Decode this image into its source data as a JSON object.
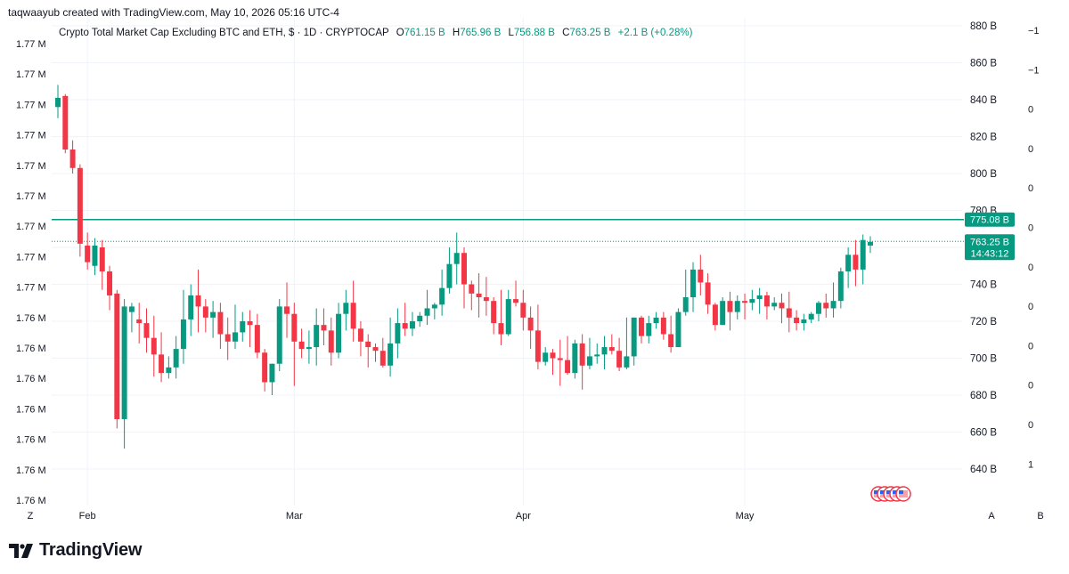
{
  "header": {
    "attribution": "taqwaayub created with TradingView.com, May 10, 2026 05:16 UTC-4"
  },
  "legend": {
    "title": "Crypto Total Market Cap Excluding BTC and ETH, $ · 1D · CRYPTOCAP",
    "o_label": "O",
    "o_value": "761.15 B",
    "h_label": "H",
    "h_value": "765.96 B",
    "l_label": "L",
    "l_value": "756.88 B",
    "c_label": "C",
    "c_value": "763.25 B",
    "change": "+2.1 B (+0.28%)"
  },
  "colors": {
    "up": "#089981",
    "down": "#f23645",
    "grid": "#f0f3fa",
    "hline": "#089981",
    "text": "#131722"
  },
  "axis_buttons": {
    "left": "Z",
    "right_a": "A",
    "right_b": "B"
  },
  "footer": {
    "brand": "TradingView"
  },
  "price_labels": {
    "resistance": "775.08 B",
    "last_price": "763.25 B",
    "countdown": "14:43:12"
  },
  "chart_data": {
    "type": "candlestick",
    "title": "Crypto Total Market Cap Excluding BTC and ETH, $ · 1D · CRYPTOCAP",
    "x_ticks": [
      "Feb",
      "Mar",
      "Apr",
      "May"
    ],
    "y_right_ticks": [
      "880 B",
      "860 B",
      "840 B",
      "820 B",
      "800 B",
      "780 B",
      "740 B",
      "720 B",
      "700 B",
      "680 B",
      "660 B",
      "640 B"
    ],
    "y_right_tick_values": [
      880,
      860,
      840,
      820,
      800,
      780,
      740,
      720,
      700,
      680,
      660,
      640
    ],
    "y_left_ticks": [
      "1.77 M",
      "1.77 M",
      "1.77 M",
      "1.77 M",
      "1.77 M",
      "1.77 M",
      "1.77 M",
      "1.77 M",
      "1.77 M",
      "1.76 M",
      "1.76 M",
      "1.76 M",
      "1.76 M",
      "1.76 M",
      "1.76 M",
      "1.76 M"
    ],
    "y_far_right_ticks": [
      "−1",
      "−1",
      "0",
      "0",
      "0",
      "0",
      "0",
      "0",
      "0",
      "0",
      "0",
      "1"
    ],
    "ylim": [
      630,
      885
    ],
    "horizontal_line": 775.08,
    "last_close": 763.25,
    "candles": [
      [
        836,
        841,
        830,
        848
      ],
      [
        842,
        813,
        811,
        843
      ],
      [
        813,
        803,
        800,
        818
      ],
      [
        803,
        762,
        755,
        805
      ],
      [
        761,
        752,
        748,
        768
      ],
      [
        750,
        761,
        745,
        765
      ],
      [
        760,
        747,
        737,
        764
      ],
      [
        747,
        734,
        726,
        750
      ],
      [
        735,
        667,
        662,
        737
      ],
      [
        667,
        728,
        651,
        732
      ],
      [
        725,
        728,
        714,
        730
      ],
      [
        721,
        719,
        708,
        730
      ],
      [
        719,
        711,
        703,
        727
      ],
      [
        711,
        702,
        690,
        723
      ],
      [
        702,
        692,
        687,
        714
      ],
      [
        692,
        695,
        689,
        701
      ],
      [
        695,
        705,
        689,
        712
      ],
      [
        705,
        721,
        697,
        737
      ],
      [
        721,
        734,
        712,
        740
      ],
      [
        734,
        728,
        714,
        748
      ],
      [
        728,
        722,
        714,
        732
      ],
      [
        722,
        725,
        711,
        731
      ],
      [
        725,
        713,
        705,
        730
      ],
      [
        713,
        709,
        699,
        722
      ],
      [
        709,
        714,
        705,
        729
      ],
      [
        714,
        720,
        709,
        725
      ],
      [
        720,
        718,
        706,
        726
      ],
      [
        718,
        703,
        700,
        724
      ],
      [
        703,
        687,
        682,
        705
      ],
      [
        687,
        697,
        680,
        697
      ],
      [
        697,
        728,
        693,
        732
      ],
      [
        728,
        724,
        711,
        741
      ],
      [
        724,
        709,
        685,
        730
      ],
      [
        709,
        705,
        700,
        716
      ],
      [
        705,
        706,
        697,
        715
      ],
      [
        706,
        718,
        696,
        727
      ],
      [
        718,
        715,
        707,
        727
      ],
      [
        715,
        703,
        696,
        722
      ],
      [
        703,
        724,
        700,
        730
      ],
      [
        724,
        730,
        715,
        737
      ],
      [
        730,
        716,
        709,
        742
      ],
      [
        716,
        709,
        701,
        720
      ],
      [
        709,
        706,
        695,
        713
      ],
      [
        706,
        704,
        698,
        708
      ],
      [
        704,
        696,
        695,
        711
      ],
      [
        696,
        708,
        690,
        722
      ],
      [
        708,
        719,
        700,
        727
      ],
      [
        719,
        716,
        712,
        730
      ],
      [
        716,
        720,
        712,
        725
      ],
      [
        720,
        723,
        717,
        725
      ],
      [
        723,
        727,
        718,
        737
      ],
      [
        727,
        729,
        721,
        730
      ],
      [
        729,
        738,
        723,
        748
      ],
      [
        738,
        751,
        735,
        760
      ],
      [
        751,
        757,
        740,
        768
      ],
      [
        757,
        740,
        727,
        760
      ],
      [
        740,
        735,
        726,
        742
      ],
      [
        735,
        733,
        722,
        746
      ],
      [
        733,
        731,
        723,
        744
      ],
      [
        731,
        719,
        713,
        733
      ],
      [
        719,
        713,
        707,
        737
      ],
      [
        713,
        732,
        712,
        737
      ],
      [
        732,
        730,
        728,
        742
      ],
      [
        730,
        722,
        715,
        737
      ],
      [
        722,
        715,
        705,
        728
      ],
      [
        715,
        698,
        694,
        729
      ],
      [
        698,
        703,
        696,
        706
      ],
      [
        703,
        700,
        691,
        705
      ],
      [
        700,
        699,
        685,
        710
      ],
      [
        699,
        692,
        691,
        712
      ],
      [
        692,
        708,
        689,
        710
      ],
      [
        708,
        696,
        683,
        713
      ],
      [
        696,
        701,
        694,
        711
      ],
      [
        701,
        702,
        697,
        708
      ],
      [
        702,
        706,
        694,
        712
      ],
      [
        706,
        704,
        702,
        713
      ],
      [
        704,
        695,
        693,
        711
      ],
      [
        695,
        701,
        694,
        722
      ],
      [
        701,
        722,
        696,
        722
      ],
      [
        722,
        712,
        708,
        723
      ],
      [
        712,
        719,
        708,
        723
      ],
      [
        719,
        722,
        716,
        725
      ],
      [
        722,
        713,
        710,
        725
      ],
      [
        713,
        706,
        703,
        723
      ],
      [
        706,
        725,
        706,
        727
      ],
      [
        725,
        733,
        723,
        748
      ],
      [
        733,
        748,
        725,
        752
      ],
      [
        748,
        741,
        734,
        756
      ],
      [
        741,
        729,
        724,
        746
      ],
      [
        729,
        718,
        715,
        730
      ],
      [
        718,
        731,
        718,
        733
      ],
      [
        731,
        725,
        715,
        736
      ],
      [
        725,
        731,
        721,
        734
      ],
      [
        731,
        730,
        721,
        735
      ],
      [
        730,
        732,
        726,
        737
      ],
      [
        732,
        734,
        724,
        738
      ],
      [
        734,
        728,
        721,
        736
      ],
      [
        728,
        730,
        726,
        733
      ],
      [
        730,
        727,
        719,
        735
      ],
      [
        727,
        722,
        714,
        736
      ],
      [
        722,
        719,
        715,
        726
      ],
      [
        719,
        721,
        715,
        724
      ],
      [
        721,
        724,
        719,
        725
      ],
      [
        724,
        730,
        720,
        731
      ],
      [
        730,
        727,
        722,
        735
      ],
      [
        727,
        731,
        722,
        741
      ],
      [
        731,
        747,
        727,
        749
      ],
      [
        747,
        756,
        738,
        760
      ],
      [
        756,
        748,
        739,
        764
      ],
      [
        748,
        764,
        740,
        767
      ],
      [
        761,
        763,
        757,
        766
      ]
    ]
  }
}
